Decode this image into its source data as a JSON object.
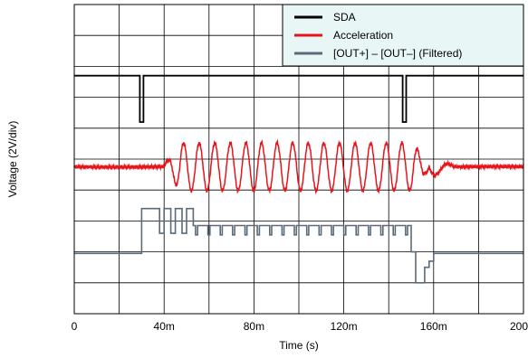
{
  "chart_data": {
    "type": "line",
    "title": "",
    "xlabel": "Time (s)",
    "ylabel": "Voltage (2V/div)",
    "xlim": [
      0,
      0.2
    ],
    "ylim": [
      0,
      10
    ],
    "x_ticks": [
      0,
      0.04,
      0.08,
      0.12,
      0.16,
      0.2
    ],
    "x_tick_labels": [
      "0",
      "40m",
      "80m",
      "120m",
      "160m",
      "200m"
    ],
    "y_divisions": 10,
    "x_divisions": 10,
    "grid": true,
    "legend_position": "top-right",
    "series": [
      {
        "name": "SDA",
        "color": "#000000",
        "kind": "digital-pulses",
        "baseline": 7.7,
        "pulses": [
          {
            "t": 0.03,
            "level": 6.2
          },
          {
            "t": 0.147,
            "level": 6.2
          }
        ]
      },
      {
        "name": "Acceleration",
        "color": "#e8141c",
        "kind": "burst-sine",
        "baseline": 4.75,
        "start": 0.04,
        "end": 0.158,
        "amplitude": 0.78,
        "cycles": 17
      },
      {
        "name": "[OUT+] – [OUT–] (Filtered)",
        "color": "#5a6a7a",
        "kind": "steps",
        "baseline": 1.95,
        "points": [
          [
            0.0,
            1.95
          ],
          [
            0.03,
            1.95
          ],
          [
            0.03,
            3.4
          ],
          [
            0.038,
            3.4
          ],
          [
            0.038,
            2.6
          ],
          [
            0.04,
            2.6
          ],
          [
            0.04,
            3.4
          ],
          [
            0.043,
            3.4
          ],
          [
            0.043,
            2.6
          ],
          [
            0.045,
            2.6
          ],
          [
            0.045,
            3.4
          ],
          [
            0.048,
            3.4
          ],
          [
            0.048,
            2.6
          ],
          [
            0.05,
            2.6
          ],
          [
            0.05,
            3.4
          ],
          [
            0.053,
            3.4
          ],
          [
            0.053,
            2.85
          ],
          [
            0.15,
            2.85
          ],
          [
            0.15,
            2.0
          ],
          [
            0.152,
            2.0
          ],
          [
            0.152,
            1.0
          ],
          [
            0.156,
            1.0
          ],
          [
            0.156,
            1.5
          ],
          [
            0.158,
            1.5
          ],
          [
            0.158,
            1.7
          ],
          [
            0.16,
            1.7
          ],
          [
            0.16,
            1.95
          ],
          [
            0.2,
            1.95
          ]
        ]
      }
    ]
  }
}
